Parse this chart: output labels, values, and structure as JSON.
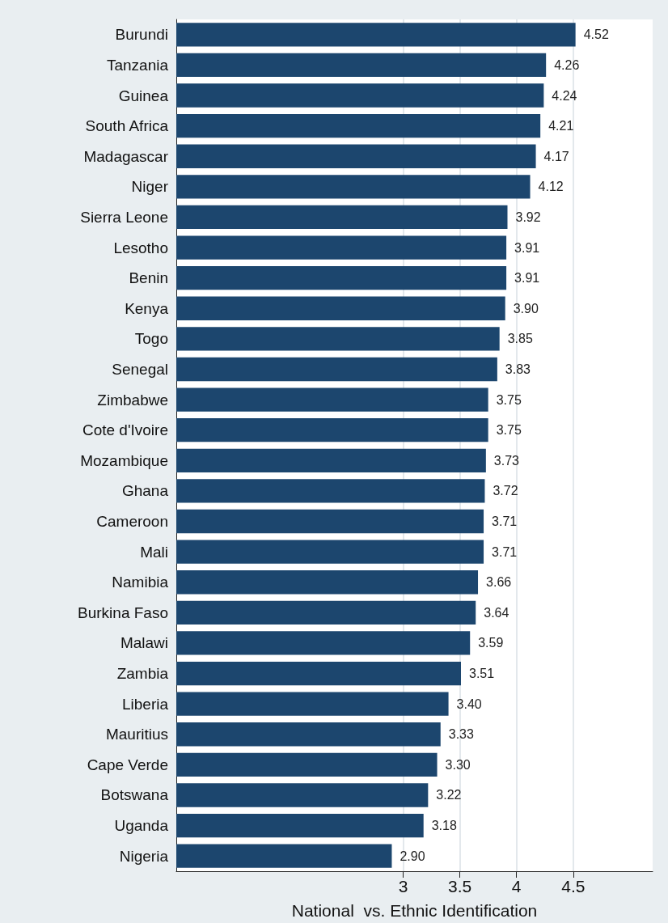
{
  "chart_data": {
    "type": "bar",
    "orientation": "horizontal",
    "xlabel": "National  vs. Ethnic Identification",
    "categories": [
      "Burundi",
      "Tanzania",
      "Guinea",
      "South Africa",
      "Madagascar",
      "Niger",
      "Sierra Leone",
      "Lesotho",
      "Benin",
      "Kenya",
      "Togo",
      "Senegal",
      "Zimbabwe",
      "Cote d'Ivoire",
      "Mozambique",
      "Ghana",
      "Cameroon",
      "Mali",
      "Namibia",
      "Burkina Faso",
      "Malawi",
      "Zambia",
      "Liberia",
      "Mauritius",
      "Cape Verde",
      "Botswana",
      "Uganda",
      "Nigeria"
    ],
    "values": [
      4.52,
      4.26,
      4.24,
      4.21,
      4.17,
      4.12,
      3.92,
      3.91,
      3.91,
      3.9,
      3.85,
      3.83,
      3.75,
      3.75,
      3.73,
      3.72,
      3.71,
      3.71,
      3.66,
      3.64,
      3.59,
      3.51,
      3.4,
      3.33,
      3.3,
      3.22,
      3.18,
      2.9
    ],
    "value_labels": [
      "4.52",
      "4.26",
      "4.24",
      "4.21",
      "4.17",
      "4.12",
      "3.92",
      "3.91",
      "3.91",
      "3.90",
      "3.85",
      "3.83",
      "3.75",
      "3.75",
      "3.73",
      "3.72",
      "3.71",
      "3.71",
      "3.66",
      "3.64",
      "3.59",
      "3.51",
      "3.40",
      "3.33",
      "3.30",
      "3.22",
      "3.18",
      "2.90"
    ],
    "color": "#1c466e",
    "xlim": [
      1,
      5.2
    ],
    "xticks": [
      3,
      3.5,
      4,
      4.5
    ],
    "grid": "x"
  }
}
